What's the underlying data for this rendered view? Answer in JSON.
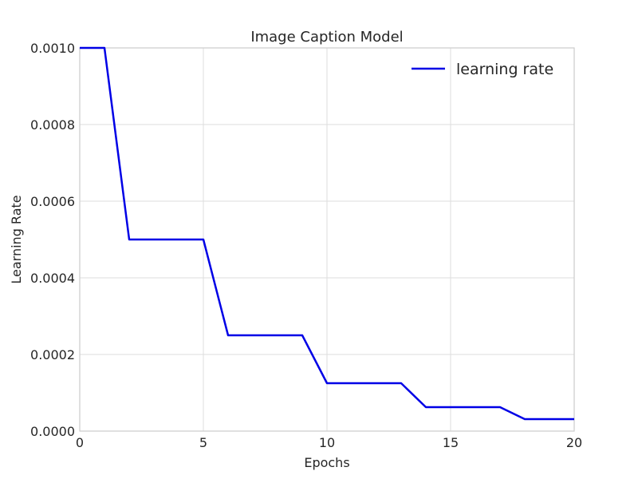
{
  "chart_data": {
    "type": "line",
    "title": "Image Caption Model",
    "xlabel": "Epochs",
    "ylabel": "Learning Rate",
    "xlim": [
      0,
      20
    ],
    "ylim": [
      0,
      0.001
    ],
    "xticks": [
      0,
      5,
      10,
      15,
      20
    ],
    "xtick_labels": [
      "0",
      "5",
      "10",
      "15",
      "20"
    ],
    "yticks": [
      0,
      0.0002,
      0.0004,
      0.0006,
      0.0008,
      0.001
    ],
    "ytick_labels": [
      "0.0000",
      "0.0002",
      "0.0004",
      "0.0006",
      "0.0008",
      "0.0010"
    ],
    "grid": true,
    "legend_position": "top-right",
    "series": [
      {
        "name": "learning rate",
        "color": "#0000e6",
        "x": [
          0,
          1,
          2,
          3,
          4,
          5,
          6,
          7,
          8,
          9,
          10,
          11,
          12,
          13,
          14,
          15,
          16,
          17,
          18,
          19,
          20
        ],
        "y": [
          0.001,
          0.001,
          0.0005,
          0.0005,
          0.0005,
          0.0005,
          0.00025,
          0.00025,
          0.00025,
          0.00025,
          0.000125,
          0.000125,
          0.000125,
          0.000125,
          6.25e-05,
          6.25e-05,
          6.25e-05,
          6.25e-05,
          3.125e-05,
          3.125e-05,
          3.125e-05
        ]
      }
    ]
  }
}
